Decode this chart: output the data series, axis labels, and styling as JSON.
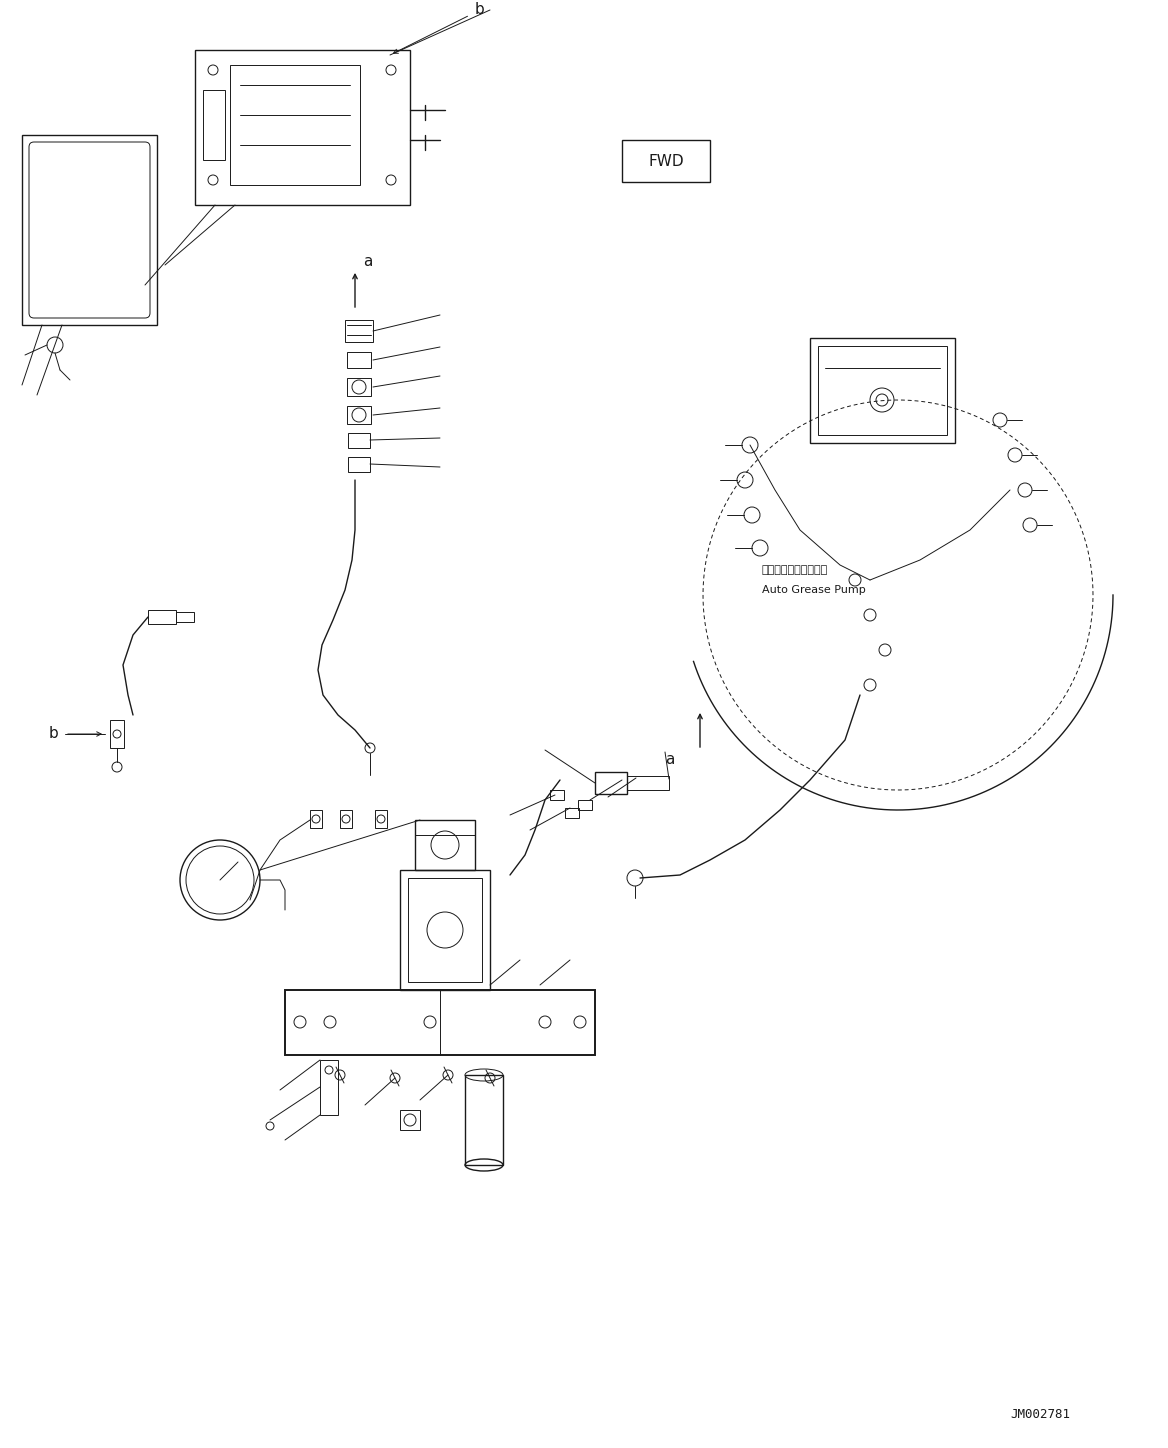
{
  "bg_color": "#ffffff",
  "line_color": "#1a1a1a",
  "fig_width": 11.68,
  "fig_height": 14.48,
  "dpi": 100,
  "watermark": "JM002781",
  "fwd_label": "FWD",
  "label_a": "a",
  "label_b": "b",
  "jp_text_line1": "オートグリースポンプ",
  "jp_text_line2": "Auto Grease Pump"
}
